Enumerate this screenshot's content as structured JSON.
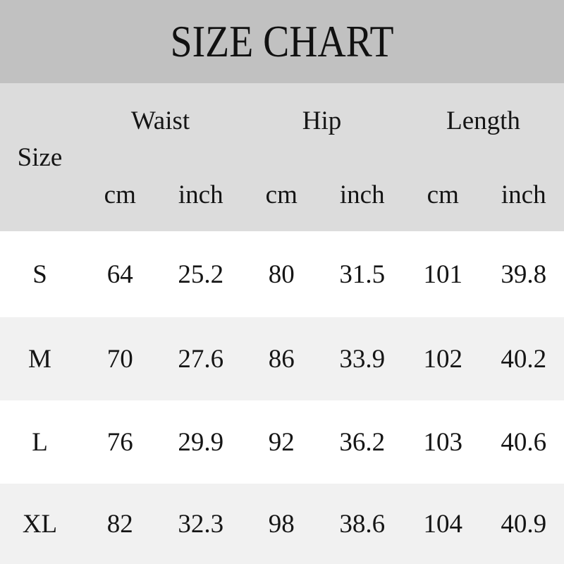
{
  "title": "SIZE CHART",
  "header": {
    "size": "Size",
    "groups": [
      "Waist",
      "Hip",
      "Length"
    ],
    "units": [
      "cm",
      "inch"
    ]
  },
  "chart_data": {
    "type": "table",
    "title": "SIZE CHART",
    "columns": [
      "Size",
      "Waist cm",
      "Waist inch",
      "Hip cm",
      "Hip inch",
      "Length cm",
      "Length inch"
    ],
    "rows": [
      [
        "S",
        "64",
        "25.2",
        "80",
        "31.5",
        "101",
        "39.8"
      ],
      [
        "M",
        "70",
        "27.6",
        "86",
        "33.9",
        "102",
        "40.2"
      ],
      [
        "L",
        "76",
        "29.9",
        "92",
        "36.2",
        "103",
        "40.6"
      ],
      [
        "XL",
        "82",
        "32.3",
        "98",
        "38.6",
        "104",
        "40.9"
      ]
    ]
  },
  "colors": {
    "title_bar_bg": "#c1c1c1",
    "header_bg": "#dcdcdc",
    "row_white": "#ffffff",
    "row_alt": "#f1f1f1",
    "text": "#151515"
  }
}
